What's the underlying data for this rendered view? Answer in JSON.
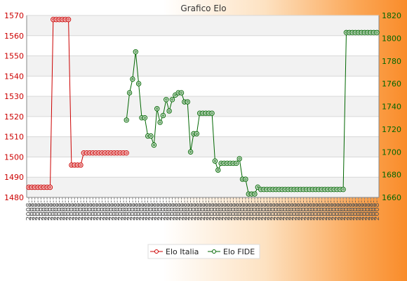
{
  "chart_data": {
    "type": "line",
    "title": "Grafico Elo",
    "left_axis": {
      "ylim": [
        1480,
        1570
      ],
      "ticks": [
        1480,
        1490,
        1500,
        1510,
        1520,
        1530,
        1540,
        1550,
        1560,
        1570
      ],
      "color": "#cc0000"
    },
    "right_axis": {
      "ylim": [
        1660,
        1820
      ],
      "ticks": [
        1660,
        1680,
        1700,
        1720,
        1740,
        1760,
        1780,
        1800,
        1820
      ],
      "color": "#006600"
    },
    "x_count": 115,
    "x_label_text": "2008-",
    "grid": true,
    "banded_background": true,
    "legend_position": "bottom",
    "series": [
      {
        "name": "Elo Italia",
        "axis": "left",
        "color": "#cc0000",
        "points": [
          [
            0,
            1485
          ],
          [
            1,
            1485
          ],
          [
            2,
            1485
          ],
          [
            3,
            1485
          ],
          [
            4,
            1485
          ],
          [
            5,
            1485
          ],
          [
            6,
            1485
          ],
          [
            7,
            1485
          ],
          [
            8,
            1568
          ],
          [
            9,
            1568
          ],
          [
            10,
            1568
          ],
          [
            11,
            1568
          ],
          [
            12,
            1568
          ],
          [
            13,
            1568
          ],
          [
            14,
            1496
          ],
          [
            15,
            1496
          ],
          [
            16,
            1496
          ],
          [
            17,
            1496
          ],
          [
            18,
            1502
          ],
          [
            19,
            1502
          ],
          [
            20,
            1502
          ],
          [
            21,
            1502
          ],
          [
            22,
            1502
          ],
          [
            23,
            1502
          ],
          [
            24,
            1502
          ],
          [
            25,
            1502
          ],
          [
            26,
            1502
          ],
          [
            27,
            1502
          ],
          [
            28,
            1502
          ],
          [
            29,
            1502
          ],
          [
            30,
            1502
          ],
          [
            31,
            1502
          ],
          [
            32,
            1502
          ]
        ]
      },
      {
        "name": "Elo FIDE",
        "axis": "right",
        "color": "#006600",
        "points": [
          [
            32,
            1728
          ],
          [
            33,
            1752
          ],
          [
            34,
            1764
          ],
          [
            35,
            1788
          ],
          [
            36,
            1760
          ],
          [
            37,
            1730
          ],
          [
            38,
            1730
          ],
          [
            39,
            1714
          ],
          [
            40,
            1714
          ],
          [
            41,
            1706
          ],
          [
            42,
            1738
          ],
          [
            43,
            1726
          ],
          [
            44,
            1732
          ],
          [
            45,
            1746
          ],
          [
            46,
            1736
          ],
          [
            47,
            1746
          ],
          [
            48,
            1750
          ],
          [
            49,
            1752
          ],
          [
            50,
            1752
          ],
          [
            51,
            1744
          ],
          [
            52,
            1744
          ],
          [
            53,
            1700
          ],
          [
            54,
            1716
          ],
          [
            55,
            1716
          ],
          [
            56,
            1734
          ],
          [
            57,
            1734
          ],
          [
            58,
            1734
          ],
          [
            59,
            1734
          ],
          [
            60,
            1734
          ],
          [
            61,
            1692
          ],
          [
            62,
            1684
          ],
          [
            63,
            1690
          ],
          [
            64,
            1690
          ],
          [
            65,
            1690
          ],
          [
            66,
            1690
          ],
          [
            67,
            1690
          ],
          [
            68,
            1690
          ],
          [
            69,
            1694
          ],
          [
            70,
            1676
          ],
          [
            71,
            1676
          ],
          [
            72,
            1663
          ],
          [
            73,
            1663
          ],
          [
            74,
            1663
          ],
          [
            75,
            1669
          ],
          [
            76,
            1667
          ],
          [
            77,
            1667
          ],
          [
            78,
            1667
          ],
          [
            79,
            1667
          ],
          [
            80,
            1667
          ],
          [
            81,
            1667
          ],
          [
            82,
            1667
          ],
          [
            83,
            1667
          ],
          [
            84,
            1667
          ],
          [
            85,
            1667
          ],
          [
            86,
            1667
          ],
          [
            87,
            1667
          ],
          [
            88,
            1667
          ],
          [
            89,
            1667
          ],
          [
            90,
            1667
          ],
          [
            91,
            1667
          ],
          [
            92,
            1667
          ],
          [
            93,
            1667
          ],
          [
            94,
            1667
          ],
          [
            95,
            1667
          ],
          [
            96,
            1667
          ],
          [
            97,
            1667
          ],
          [
            98,
            1667
          ],
          [
            99,
            1667
          ],
          [
            100,
            1667
          ],
          [
            101,
            1667
          ],
          [
            102,
            1667
          ],
          [
            103,
            1667
          ],
          [
            104,
            1805
          ],
          [
            105,
            1805
          ],
          [
            106,
            1805
          ],
          [
            107,
            1805
          ],
          [
            108,
            1805
          ],
          [
            109,
            1805
          ],
          [
            110,
            1805
          ],
          [
            111,
            1805
          ],
          [
            112,
            1805
          ],
          [
            113,
            1805
          ],
          [
            114,
            1805
          ]
        ]
      }
    ]
  }
}
